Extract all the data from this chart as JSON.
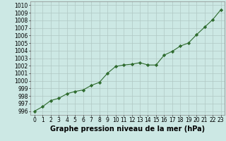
{
  "x": [
    0,
    1,
    2,
    3,
    4,
    5,
    6,
    7,
    8,
    9,
    10,
    11,
    12,
    13,
    14,
    15,
    16,
    17,
    18,
    19,
    20,
    21,
    22,
    23
  ],
  "y": [
    996.0,
    996.6,
    997.4,
    997.7,
    998.3,
    998.6,
    998.8,
    999.4,
    999.8,
    1001.0,
    1001.9,
    1002.1,
    1002.2,
    1002.4,
    1002.1,
    1002.1,
    1003.4,
    1003.9,
    1004.6,
    1005.0,
    1006.1,
    1007.1,
    1008.1,
    1009.4
  ],
  "line_color": "#2e6b2e",
  "marker": "D",
  "marker_size": 2.2,
  "bg_color": "#cce8e4",
  "grid_color": "#b0c8c4",
  "xlabel": "Graphe pression niveau de la mer (hPa)",
  "ylim": [
    995.5,
    1010.5
  ],
  "xlim": [
    -0.5,
    23.5
  ],
  "yticks": [
    996,
    997,
    998,
    999,
    1000,
    1001,
    1002,
    1003,
    1004,
    1005,
    1006,
    1007,
    1008,
    1009,
    1010
  ],
  "xticks": [
    0,
    1,
    2,
    3,
    4,
    5,
    6,
    7,
    8,
    9,
    10,
    11,
    12,
    13,
    14,
    15,
    16,
    17,
    18,
    19,
    20,
    21,
    22,
    23
  ],
  "tick_fontsize": 5.5,
  "xlabel_fontsize": 7.0
}
